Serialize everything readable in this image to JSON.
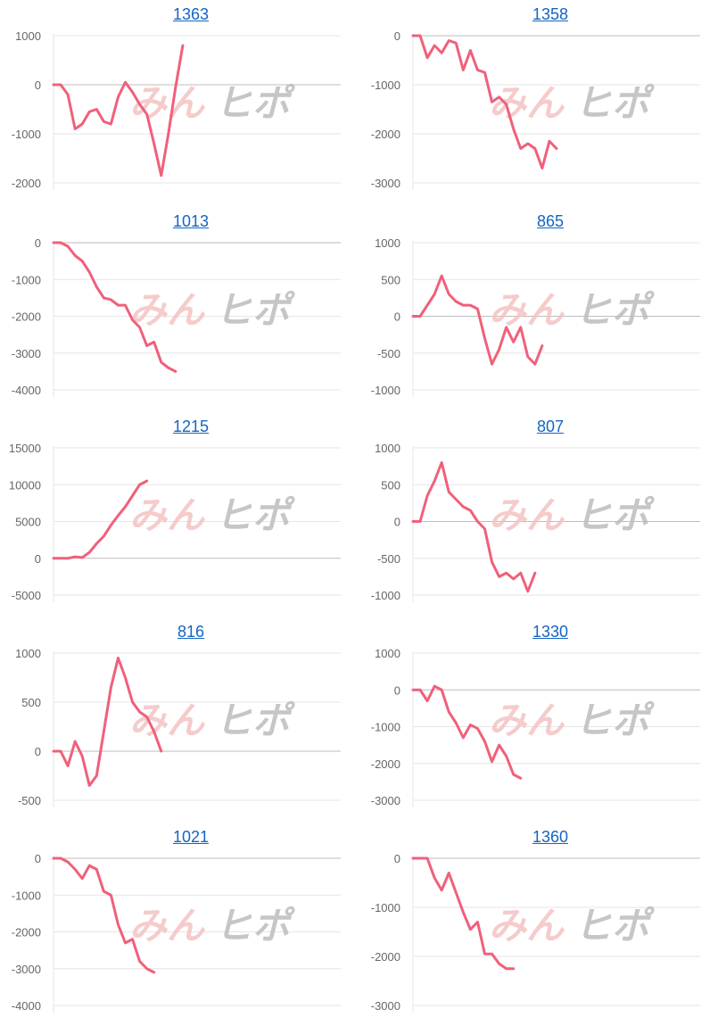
{
  "colors": {
    "line": "#f0607a",
    "grid": "#e6e6e6",
    "zero_line": "#bdbdbd",
    "title_link": "#1565c0",
    "tick_text": "#666666",
    "watermark_pink": "#f4c2c2",
    "watermark_gray": "#bdbdbd"
  },
  "watermark": {
    "text_left": "みん",
    "text_right": "ヒポ"
  },
  "charts": [
    {
      "id": "1363",
      "title": "1363",
      "type": "line",
      "ylim": [
        -2000,
        1000
      ],
      "yticks": [
        1000,
        0,
        -1000,
        -2000
      ],
      "tick_labels": [
        "1000",
        "0",
        "-1000",
        "-2000"
      ],
      "xlim": [
        0,
        40
      ],
      "series": [
        {
          "values": [
            0,
            0,
            -200,
            -900,
            -800,
            -550,
            -500,
            -750,
            -800,
            -250,
            50,
            -150,
            -400,
            -600,
            -1200,
            -1850,
            -1000,
            -50,
            800
          ]
        }
      ]
    },
    {
      "id": "1358",
      "title": "1358",
      "type": "line",
      "ylim": [
        -3000,
        0
      ],
      "yticks": [
        0,
        -1000,
        -2000,
        -3000
      ],
      "tick_labels": [
        "0",
        "-1000",
        "-2000",
        "-3000"
      ],
      "xlim": [
        0,
        40
      ],
      "series": [
        {
          "values": [
            0,
            0,
            -450,
            -200,
            -350,
            -100,
            -150,
            -700,
            -300,
            -700,
            -750,
            -1350,
            -1250,
            -1400,
            -1900,
            -2300,
            -2200,
            -2300,
            -2700,
            -2150,
            -2300
          ]
        }
      ]
    },
    {
      "id": "1013",
      "title": "1013",
      "type": "line",
      "ylim": [
        -4000,
        0
      ],
      "yticks": [
        0,
        -1000,
        -2000,
        -3000,
        -4000
      ],
      "tick_labels": [
        "0",
        "-1000",
        "-2000",
        "-3000",
        "-4000"
      ],
      "xlim": [
        0,
        40
      ],
      "series": [
        {
          "values": [
            0,
            0,
            -100,
            -350,
            -500,
            -800,
            -1200,
            -1500,
            -1550,
            -1700,
            -1700,
            -2100,
            -2300,
            -2800,
            -2700,
            -3250,
            -3400,
            -3500
          ]
        }
      ]
    },
    {
      "id": "865",
      "title": "865",
      "type": "line",
      "ylim": [
        -1000,
        1000
      ],
      "yticks": [
        1000,
        500,
        0,
        -500,
        -1000
      ],
      "tick_labels": [
        "1000",
        "500",
        "0",
        "-500",
        "-1000"
      ],
      "xlim": [
        0,
        40
      ],
      "series": [
        {
          "values": [
            0,
            0,
            150,
            300,
            550,
            300,
            200,
            150,
            150,
            100,
            -300,
            -650,
            -450,
            -150,
            -350,
            -150,
            -550,
            -650,
            -400
          ]
        }
      ]
    },
    {
      "id": "1215",
      "title": "1215",
      "type": "line",
      "ylim": [
        -5000,
        15000
      ],
      "yticks": [
        15000,
        10000,
        5000,
        0,
        -5000
      ],
      "tick_labels": [
        "15000",
        "10000",
        "5000",
        "0",
        "-5000"
      ],
      "xlim": [
        0,
        40
      ],
      "series": [
        {
          "values": [
            0,
            0,
            0,
            200,
            100,
            800,
            2000,
            3000,
            4500,
            5800,
            7000,
            8500,
            10000,
            10500
          ]
        }
      ]
    },
    {
      "id": "807",
      "title": "807",
      "type": "line",
      "ylim": [
        -1000,
        1000
      ],
      "yticks": [
        1000,
        500,
        0,
        -500,
        -1000
      ],
      "tick_labels": [
        "1000",
        "500",
        "0",
        "-500",
        "-1000"
      ],
      "xlim": [
        0,
        40
      ],
      "series": [
        {
          "values": [
            0,
            0,
            350,
            550,
            800,
            400,
            300,
            200,
            150,
            0,
            -100,
            -550,
            -750,
            -700,
            -780,
            -700,
            -950,
            -700
          ]
        }
      ]
    },
    {
      "id": "816",
      "title": "816",
      "type": "line",
      "ylim": [
        -500,
        1000
      ],
      "yticks": [
        1000,
        500,
        0,
        -500
      ],
      "tick_labels": [
        "1000",
        "500",
        "0",
        "-500"
      ],
      "xlim": [
        0,
        40
      ],
      "series": [
        {
          "values": [
            0,
            0,
            -150,
            100,
            -50,
            -350,
            -250,
            200,
            650,
            950,
            750,
            500,
            400,
            350,
            200,
            0
          ]
        }
      ]
    },
    {
      "id": "1330",
      "title": "1330",
      "type": "line",
      "ylim": [
        -3000,
        1000
      ],
      "yticks": [
        1000,
        0,
        -1000,
        -2000,
        -3000
      ],
      "tick_labels": [
        "1000",
        "0",
        "-1000",
        "-2000",
        "-3000"
      ],
      "xlim": [
        0,
        40
      ],
      "series": [
        {
          "values": [
            0,
            0,
            -300,
            100,
            0,
            -600,
            -900,
            -1300,
            -950,
            -1050,
            -1400,
            -1950,
            -1500,
            -1800,
            -2300,
            -2400
          ]
        }
      ]
    },
    {
      "id": "1021",
      "title": "1021",
      "type": "line",
      "ylim": [
        -4000,
        0
      ],
      "yticks": [
        0,
        -1000,
        -2000,
        -3000,
        -4000
      ],
      "tick_labels": [
        "0",
        "-1000",
        "-2000",
        "-3000",
        "-4000"
      ],
      "xlim": [
        0,
        40
      ],
      "series": [
        {
          "values": [
            0,
            0,
            -100,
            -300,
            -550,
            -200,
            -300,
            -900,
            -1000,
            -1800,
            -2300,
            -2200,
            -2800,
            -3000,
            -3100
          ]
        }
      ]
    },
    {
      "id": "1360",
      "title": "1360",
      "type": "line",
      "ylim": [
        -3000,
        0
      ],
      "yticks": [
        0,
        -1000,
        -2000,
        -3000
      ],
      "tick_labels": [
        "0",
        "-1000",
        "-2000",
        "-3000"
      ],
      "xlim": [
        0,
        40
      ],
      "series": [
        {
          "values": [
            0,
            0,
            0,
            -400,
            -650,
            -300,
            -700,
            -1100,
            -1450,
            -1300,
            -1950,
            -1950,
            -2150,
            -2250,
            -2250
          ]
        }
      ]
    }
  ],
  "chart_data": [
    {
      "type": "line",
      "title": "1363",
      "ylim": [
        -2000,
        1000
      ],
      "series": [
        {
          "values": [
            0,
            0,
            -200,
            -900,
            -800,
            -550,
            -500,
            -750,
            -800,
            -250,
            50,
            -150,
            -400,
            -600,
            -1200,
            -1850,
            -1000,
            -50,
            800
          ]
        }
      ]
    },
    {
      "type": "line",
      "title": "1358",
      "ylim": [
        -3000,
        0
      ],
      "series": [
        {
          "values": [
            0,
            0,
            -450,
            -200,
            -350,
            -100,
            -150,
            -700,
            -300,
            -700,
            -750,
            -1350,
            -1250,
            -1400,
            -1900,
            -2300,
            -2200,
            -2300,
            -2700,
            -2150,
            -2300
          ]
        }
      ]
    },
    {
      "type": "line",
      "title": "1013",
      "ylim": [
        -4000,
        0
      ],
      "series": [
        {
          "values": [
            0,
            0,
            -100,
            -350,
            -500,
            -800,
            -1200,
            -1500,
            -1550,
            -1700,
            -1700,
            -2100,
            -2300,
            -2800,
            -2700,
            -3250,
            -3400,
            -3500
          ]
        }
      ]
    },
    {
      "type": "line",
      "title": "865",
      "ylim": [
        -1000,
        1000
      ],
      "series": [
        {
          "values": [
            0,
            0,
            150,
            300,
            550,
            300,
            200,
            150,
            150,
            100,
            -300,
            -650,
            -450,
            -150,
            -350,
            -150,
            -550,
            -650,
            -400
          ]
        }
      ]
    },
    {
      "type": "line",
      "title": "1215",
      "ylim": [
        -5000,
        15000
      ],
      "series": [
        {
          "values": [
            0,
            0,
            0,
            200,
            100,
            800,
            2000,
            3000,
            4500,
            5800,
            7000,
            8500,
            10000,
            10500
          ]
        }
      ]
    },
    {
      "type": "line",
      "title": "807",
      "ylim": [
        -1000,
        1000
      ],
      "series": [
        {
          "values": [
            0,
            0,
            350,
            550,
            800,
            400,
            300,
            200,
            150,
            0,
            -100,
            -550,
            -750,
            -700,
            -780,
            -700,
            -950,
            -700
          ]
        }
      ]
    },
    {
      "type": "line",
      "title": "816",
      "ylim": [
        -500,
        1000
      ],
      "series": [
        {
          "values": [
            0,
            0,
            -150,
            100,
            -50,
            -350,
            -250,
            200,
            650,
            950,
            750,
            500,
            400,
            350,
            200,
            0
          ]
        }
      ]
    },
    {
      "type": "line",
      "title": "1330",
      "ylim": [
        -3000,
        1000
      ],
      "series": [
        {
          "values": [
            0,
            0,
            -300,
            100,
            0,
            -600,
            -900,
            -1300,
            -950,
            -1050,
            -1400,
            -1950,
            -1500,
            -1800,
            -2300,
            -2400
          ]
        }
      ]
    },
    {
      "type": "line",
      "title": "1021",
      "ylim": [
        -4000,
        0
      ],
      "series": [
        {
          "values": [
            0,
            0,
            -100,
            -300,
            -550,
            -200,
            -300,
            -900,
            -1000,
            -1800,
            -2300,
            -2200,
            -2800,
            -3000,
            -3100
          ]
        }
      ]
    },
    {
      "type": "line",
      "title": "1360",
      "ylim": [
        -3000,
        0
      ],
      "series": [
        {
          "values": [
            0,
            0,
            0,
            -400,
            -650,
            -300,
            -700,
            -1100,
            -1450,
            -1300,
            -1950,
            -1950,
            -2150,
            -2250,
            -2250
          ]
        }
      ]
    }
  ]
}
